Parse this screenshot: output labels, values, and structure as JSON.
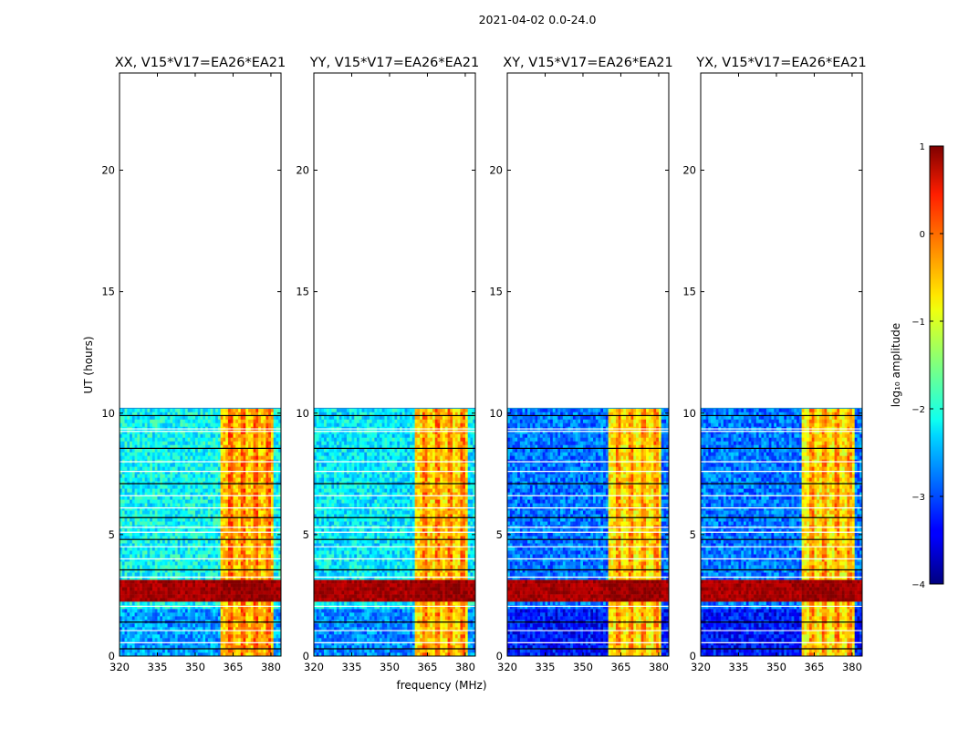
{
  "chart_data": {
    "type": "heatmap",
    "title": "2021-04-02 0.0-24.0",
    "xlabel": "frequency (MHz)",
    "ylabel": "UT (hours)",
    "x_ticks": [
      "320",
      "335",
      "350",
      "365",
      "380"
    ],
    "x_tick_values": [
      320,
      335,
      350,
      365,
      380
    ],
    "xlim": [
      320,
      384
    ],
    "y_ticks": [
      "0",
      "5",
      "10",
      "15",
      "20"
    ],
    "y_tick_values": [
      0,
      5,
      10,
      15,
      20
    ],
    "ylim": [
      0,
      24
    ],
    "data_extent_hours": [
      0,
      10.2
    ],
    "panels": [
      {
        "title": "XX, V15*V17=EA26*EA21",
        "base_level": -2.1,
        "band_level": -0.6
      },
      {
        "title": "YY, V15*V17=EA26*EA21",
        "base_level": -2.2,
        "band_level": -0.7
      },
      {
        "title": "XY, V15*V17=EA26*EA21",
        "base_level": -2.8,
        "band_level": -0.8
      },
      {
        "title": "YX, V15*V17=EA26*EA21",
        "base_level": -2.8,
        "band_level": -0.8
      }
    ],
    "features": {
      "strong_band_hours": [
        2.3,
        3.1
      ],
      "strong_band_level": 0.8,
      "rfi_channels_mhz": [
        364,
        369,
        374,
        379
      ],
      "rfi_region_mhz": [
        360,
        381
      ]
    },
    "colorbar": {
      "label": "log₁₀ amplitude",
      "range": [
        -4,
        1
      ],
      "ticks": [
        "1",
        "0",
        "−1",
        "−2",
        "−3",
        "−4"
      ],
      "tick_values": [
        1,
        0,
        -1,
        -2,
        -3,
        -4
      ],
      "colormap": "jet"
    }
  }
}
